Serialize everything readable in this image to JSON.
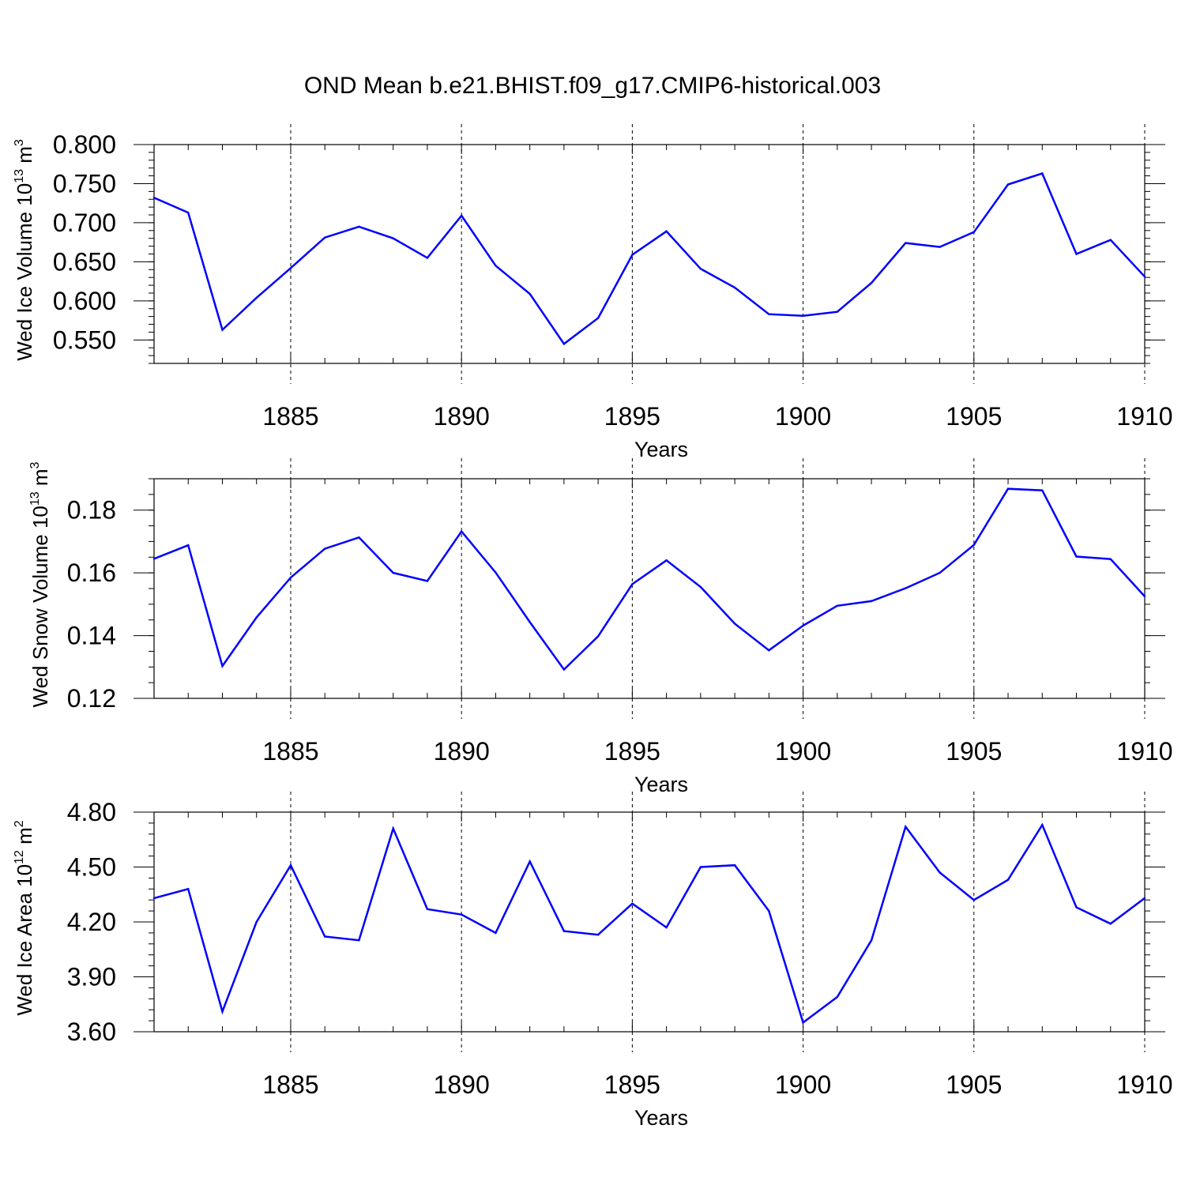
{
  "figure": {
    "title": "OND Mean b.e21.BHIST.f09_g17.CMIP6-historical.003"
  },
  "chart_data": [
    {
      "type": "line",
      "ylabel": {
        "prefix": "Wed Ice Volume 10",
        "exp": "13",
        "unit": " m",
        "unit_exp": "3"
      },
      "xlabel": "Years",
      "xlim": [
        1881,
        1910
      ],
      "ylim": [
        0.52,
        0.8
      ],
      "y_major_ticks": [
        0.55,
        0.6,
        0.65,
        0.7,
        0.75,
        0.8
      ],
      "y_tick_labels": [
        "0.550",
        "0.600",
        "0.650",
        "0.700",
        "0.750",
        "0.800"
      ],
      "y_minor_step": 0.01,
      "x_major_ticks": [
        1885,
        1890,
        1895,
        1900,
        1905,
        1910
      ],
      "x_tick_labels": [
        "1885",
        "1890",
        "1895",
        "1900",
        "1905",
        "1910"
      ],
      "color": "#0000ff",
      "x": [
        1881,
        1882,
        1883,
        1884,
        1885,
        1886,
        1887,
        1888,
        1889,
        1890,
        1891,
        1892,
        1893,
        1894,
        1895,
        1896,
        1897,
        1898,
        1899,
        1900,
        1901,
        1902,
        1903,
        1904,
        1905,
        1906,
        1907,
        1908,
        1909,
        1910
      ],
      "values": [
        0.732,
        0.713,
        0.563,
        0.604,
        0.642,
        0.681,
        0.695,
        0.68,
        0.655,
        0.709,
        0.645,
        0.609,
        0.545,
        0.578,
        0.659,
        0.689,
        0.641,
        0.617,
        0.583,
        0.581,
        0.586,
        0.623,
        0.674,
        0.669,
        0.688,
        0.749,
        0.763,
        0.66,
        0.678,
        0.631
      ]
    },
    {
      "type": "line",
      "ylabel": {
        "prefix": "Wed Snow Volume 10",
        "exp": "13",
        "unit": " m",
        "unit_exp": "3"
      },
      "xlabel": "Years",
      "xlim": [
        1881,
        1910
      ],
      "ylim": [
        0.12,
        0.19
      ],
      "y_major_ticks": [
        0.12,
        0.14,
        0.16,
        0.18
      ],
      "y_tick_labels": [
        "0.12",
        "0.14",
        "0.16",
        "0.18"
      ],
      "y_minor_step": 0.005,
      "x_major_ticks": [
        1885,
        1890,
        1895,
        1900,
        1905,
        1910
      ],
      "x_tick_labels": [
        "1885",
        "1890",
        "1895",
        "1900",
        "1905",
        "1910"
      ],
      "color": "#0000ff",
      "x": [
        1881,
        1882,
        1883,
        1884,
        1885,
        1886,
        1887,
        1888,
        1889,
        1890,
        1891,
        1892,
        1893,
        1894,
        1895,
        1896,
        1897,
        1898,
        1899,
        1900,
        1901,
        1902,
        1903,
        1904,
        1905,
        1906,
        1907,
        1908,
        1909,
        1910
      ],
      "values": [
        0.1645,
        0.1688,
        0.1303,
        0.1458,
        0.1585,
        0.1677,
        0.1713,
        0.16,
        0.1574,
        0.1732,
        0.1601,
        0.1443,
        0.1292,
        0.1398,
        0.1564,
        0.164,
        0.1555,
        0.1438,
        0.1353,
        0.1432,
        0.1495,
        0.151,
        0.1551,
        0.16,
        0.1689,
        0.1868,
        0.1863,
        0.1652,
        0.1644,
        0.1525
      ]
    },
    {
      "type": "line",
      "ylabel": {
        "prefix": "Wed Ice Area 10",
        "exp": "12",
        "unit": " m",
        "unit_exp": "2"
      },
      "xlabel": "Years",
      "xlim": [
        1881,
        1910
      ],
      "ylim": [
        3.6,
        4.8
      ],
      "y_major_ticks": [
        3.6,
        3.9,
        4.2,
        4.5,
        4.8
      ],
      "y_tick_labels": [
        "3.60",
        "3.90",
        "4.20",
        "4.50",
        "4.80"
      ],
      "y_minor_step": 0.06,
      "x_major_ticks": [
        1885,
        1890,
        1895,
        1900,
        1905,
        1910
      ],
      "x_tick_labels": [
        "1885",
        "1890",
        "1895",
        "1900",
        "1905",
        "1910"
      ],
      "color": "#0000ff",
      "x": [
        1881,
        1882,
        1883,
        1884,
        1885,
        1886,
        1887,
        1888,
        1889,
        1890,
        1891,
        1892,
        1893,
        1894,
        1895,
        1896,
        1897,
        1898,
        1899,
        1900,
        1901,
        1902,
        1903,
        1904,
        1905,
        1906,
        1907,
        1908,
        1909,
        1910
      ],
      "values": [
        4.33,
        4.38,
        3.71,
        4.2,
        4.51,
        4.12,
        4.1,
        4.71,
        4.27,
        4.24,
        4.14,
        4.53,
        4.15,
        4.13,
        4.3,
        4.17,
        4.5,
        4.51,
        4.26,
        3.65,
        3.79,
        4.1,
        4.72,
        4.47,
        4.32,
        4.43,
        4.73,
        4.28,
        4.19,
        4.33
      ]
    }
  ]
}
